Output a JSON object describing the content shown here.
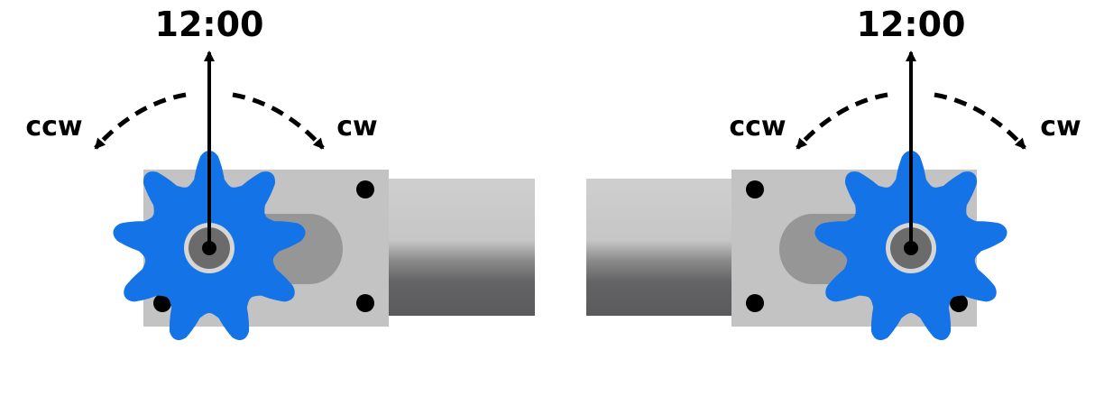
{
  "colors": {
    "sprocket": "#1473e6",
    "plate": "#c3c3c3",
    "slot": "#969696",
    "hub_ring": "#d6d6d6",
    "hub": "#6b6b6b",
    "arrow": "#000000"
  },
  "left_assembly": {
    "top_label": "12:00",
    "ccw_label": "ccw",
    "cw_label": "cw"
  },
  "right_assembly": {
    "top_label": "12:00",
    "ccw_label": "ccw",
    "cw_label": "cw"
  }
}
